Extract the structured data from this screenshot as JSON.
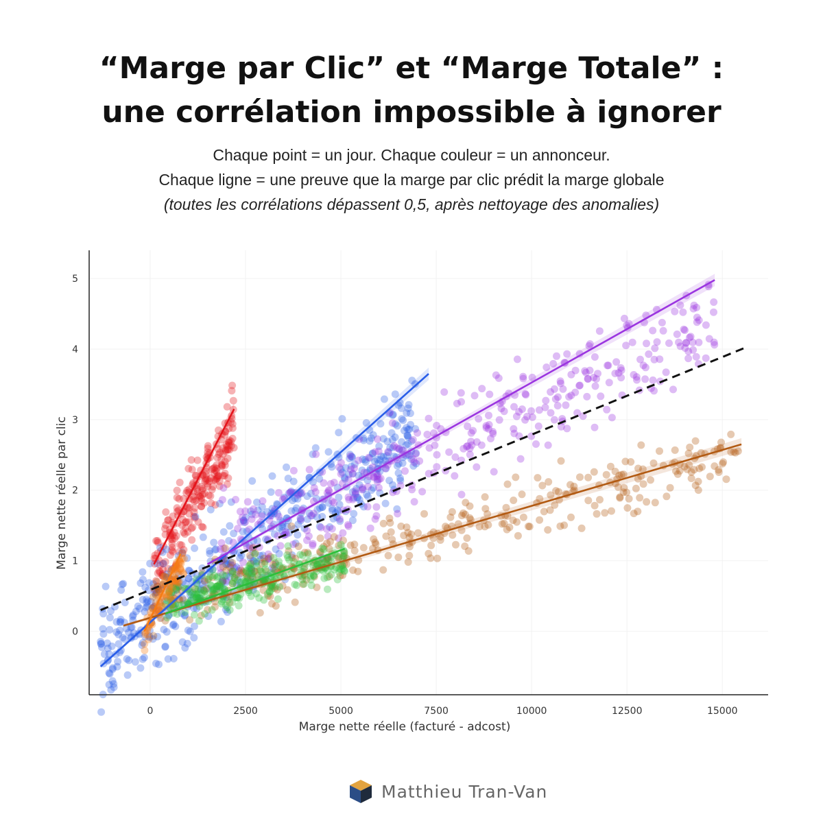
{
  "title": {
    "line1": "“Marge par Clic” et “Marge Totale” :",
    "line2": "une corrélation impossible à ignorer"
  },
  "subtitle": {
    "line1": "Chaque point = un jour. Chaque couleur = un annonceur.",
    "line2": "Chaque ligne = une preuve que la marge par clic prédit la marge globale",
    "line3": "(toutes les corrélations dépassent 0,5, après nettoyage des anomalies)"
  },
  "brand": {
    "name": "Matthieu Tran-Van",
    "icon": "cube-logo-icon"
  },
  "chart_data": {
    "type": "scatter",
    "xlabel": "Marge nette réelle (facturé - adcost)",
    "ylabel": "Marge nette réelle par clic",
    "xlim": [
      -1600,
      16200
    ],
    "ylim": [
      -0.9,
      5.4
    ],
    "xticks": [
      0,
      2500,
      5000,
      7500,
      10000,
      12500,
      15000
    ],
    "yticks": [
      0,
      1,
      2,
      3,
      4,
      5
    ],
    "grid": true,
    "series": [
      {
        "color": "#e4141b",
        "fit": {
          "x": [
            100,
            2200
          ],
          "y": [
            0.95,
            3.15
          ]
        },
        "cloud": {
          "x": [
            100,
            2200
          ],
          "yCenter": [
            0.8,
            2.9
          ],
          "spread": 0.55,
          "count": 240
        }
      },
      {
        "color": "#2a5ee8",
        "fit": {
          "x": [
            -1300,
            7300
          ],
          "y": [
            -0.5,
            3.65
          ]
        },
        "cloud": {
          "x": [
            -1300,
            7000
          ],
          "yCenter": [
            -0.35,
            2.9
          ],
          "spread": 0.75,
          "count": 520
        }
      },
      {
        "color": "#9b35e0",
        "fit": {
          "x": [
            1500,
            14800
          ],
          "y": [
            0.95,
            4.98
          ]
        },
        "cloud": {
          "x": [
            1800,
            14800
          ],
          "yCenter": [
            1.2,
            4.4
          ],
          "spread": 0.7,
          "count": 380
        }
      },
      {
        "color": "#b25a12",
        "fit": {
          "x": [
            -700,
            15500
          ],
          "y": [
            0.08,
            2.65
          ]
        },
        "cloud": {
          "x": [
            0,
            15500
          ],
          "yCenter": [
            0.4,
            2.5
          ],
          "spread": 0.4,
          "count": 380
        }
      },
      {
        "color": "#2bbf3a",
        "fit": {
          "x": [
            400,
            5100
          ],
          "y": [
            0.25,
            1.17
          ]
        },
        "cloud": {
          "x": [
            400,
            5100
          ],
          "yCenter": [
            0.4,
            1.0
          ],
          "spread": 0.28,
          "count": 260
        }
      },
      {
        "color": "#f57c14",
        "fit": {
          "x": [
            -150,
            800
          ],
          "y": [
            0.0,
            1.1
          ]
        },
        "cloud": {
          "x": [
            -150,
            900
          ],
          "yCenter": [
            -0.05,
            1.05
          ],
          "spread": 0.25,
          "count": 80
        }
      }
    ],
    "overall_fit": {
      "x": [
        -1300,
        15600
      ],
      "y": [
        0.3,
        4.02
      ],
      "style": "dashed",
      "color": "#111111"
    }
  }
}
